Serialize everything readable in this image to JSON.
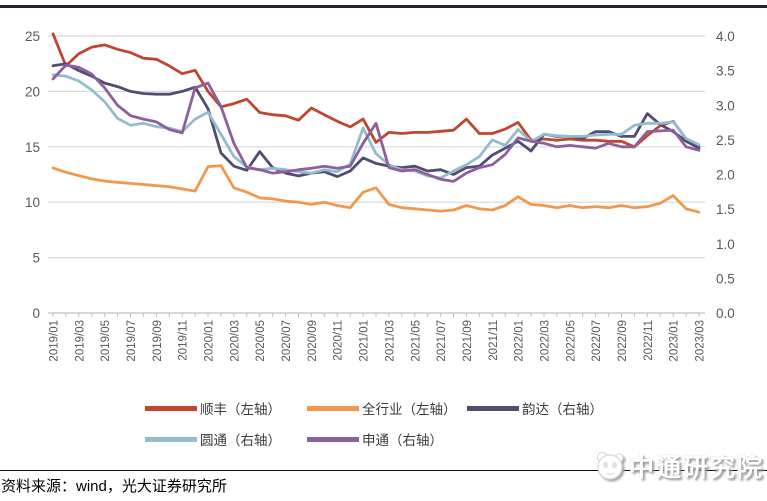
{
  "source_note": "资料来源：wind，光大证券研究所",
  "logo": {
    "text": "中通研究院",
    "icon": "panda-face"
  },
  "chart_data": {
    "type": "line",
    "title": "",
    "xlabel": "",
    "ylabel_left": "",
    "ylabel_right": "",
    "grid": "horizontal",
    "legend_position": "bottom",
    "x": [
      "2019/01",
      "2019/02",
      "2019/03",
      "2019/04",
      "2019/05",
      "2019/06",
      "2019/07",
      "2019/08",
      "2019/09",
      "2019/10",
      "2019/11",
      "2019/12",
      "2020/01",
      "2020/02",
      "2020/03",
      "2020/04",
      "2020/05",
      "2020/06",
      "2020/07",
      "2020/08",
      "2020/09",
      "2020/10",
      "2020/11",
      "2020/12",
      "2021/01",
      "2021/02",
      "2021/03",
      "2021/04",
      "2021/05",
      "2021/06",
      "2021/07",
      "2021/08",
      "2021/09",
      "2021/10",
      "2021/11",
      "2021/12",
      "2022/01",
      "2022/02",
      "2022/03",
      "2022/04",
      "2022/05",
      "2022/06",
      "2022/07",
      "2022/08",
      "2022/09",
      "2022/10",
      "2022/11",
      "2022/12",
      "2023/01",
      "2023/02",
      "2023/03"
    ],
    "x_tick_every": 2,
    "axes": {
      "left": {
        "min": 0,
        "max": 25,
        "ticks": [
          0,
          5,
          10,
          15,
          20,
          25
        ],
        "decimals": 0
      },
      "right": {
        "min": 0,
        "max": 4,
        "ticks": [
          0.0,
          0.5,
          1.0,
          1.5,
          2.0,
          2.5,
          3.0,
          3.5,
          4.0
        ],
        "decimals": 1
      }
    },
    "colors": {
      "grid": "#d9d9d9",
      "axis": "#c0c0c0",
      "tick_text": "#595959"
    },
    "series": [
      {
        "name": "顺丰（左轴）",
        "axis": "left",
        "color": "#c1462f",
        "values": [
          25.2,
          22.3,
          23.4,
          24.0,
          24.2,
          23.8,
          23.5,
          23.0,
          22.9,
          22.3,
          21.6,
          21.9,
          20.0,
          18.6,
          18.9,
          19.3,
          18.1,
          17.9,
          17.8,
          17.4,
          18.5,
          17.9,
          17.3,
          16.8,
          17.5,
          15.4,
          16.3,
          16.2,
          16.3,
          16.3,
          16.4,
          16.5,
          17.5,
          16.2,
          16.2,
          16.6,
          17.2,
          15.6,
          15.7,
          15.6,
          15.7,
          15.6,
          15.6,
          15.5,
          15.5,
          15.0,
          16.0,
          16.9,
          17.3,
          15.7,
          15.1
        ]
      },
      {
        "name": "全行业（左轴）",
        "axis": "left",
        "color": "#f0994e",
        "values": [
          13.1,
          12.7,
          12.4,
          12.1,
          11.9,
          11.8,
          11.7,
          11.6,
          11.5,
          11.4,
          11.2,
          11.0,
          13.2,
          13.3,
          11.3,
          10.9,
          10.4,
          10.3,
          10.1,
          10.0,
          9.8,
          10.0,
          9.7,
          9.5,
          10.9,
          11.3,
          9.8,
          9.5,
          9.4,
          9.3,
          9.2,
          9.3,
          9.7,
          9.4,
          9.3,
          9.7,
          10.5,
          9.8,
          9.7,
          9.5,
          9.7,
          9.5,
          9.6,
          9.5,
          9.7,
          9.5,
          9.6,
          9.9,
          10.6,
          9.4,
          9.1
        ]
      },
      {
        "name": "韵达（右轴）",
        "axis": "right",
        "color": "#504c72",
        "values": [
          3.57,
          3.6,
          3.5,
          3.42,
          3.32,
          3.27,
          3.2,
          3.17,
          3.16,
          3.16,
          3.2,
          3.26,
          2.95,
          2.31,
          2.12,
          2.06,
          2.33,
          2.1,
          2.02,
          1.98,
          2.02,
          2.04,
          1.97,
          2.05,
          2.24,
          2.16,
          2.12,
          2.1,
          2.12,
          2.05,
          2.07,
          2.0,
          2.1,
          2.12,
          2.28,
          2.38,
          2.48,
          2.34,
          2.58,
          2.55,
          2.55,
          2.52,
          2.62,
          2.62,
          2.55,
          2.55,
          2.88,
          2.72,
          2.62,
          2.48,
          2.38
        ]
      },
      {
        "name": "圆通（右轴）",
        "axis": "right",
        "color": "#93bdcd",
        "values": [
          3.44,
          3.42,
          3.35,
          3.22,
          3.05,
          2.81,
          2.71,
          2.74,
          2.69,
          2.67,
          2.62,
          2.8,
          2.9,
          2.58,
          2.26,
          2.11,
          2.07,
          2.09,
          2.07,
          2.04,
          2.02,
          2.07,
          2.04,
          2.15,
          2.67,
          2.3,
          2.14,
          2.07,
          2.05,
          1.98,
          1.95,
          2.05,
          2.14,
          2.26,
          2.5,
          2.42,
          2.65,
          2.48,
          2.58,
          2.56,
          2.55,
          2.55,
          2.57,
          2.58,
          2.58,
          2.71,
          2.74,
          2.74,
          2.76,
          2.52,
          2.43
        ]
      },
      {
        "name": "申通（右轴）",
        "axis": "right",
        "color": "#8d5f9e",
        "values": [
          3.38,
          3.58,
          3.55,
          3.45,
          3.25,
          3.0,
          2.85,
          2.8,
          2.76,
          2.65,
          2.6,
          3.25,
          3.32,
          2.98,
          2.45,
          2.1,
          2.07,
          2.02,
          2.04,
          2.07,
          2.09,
          2.12,
          2.09,
          2.12,
          2.45,
          2.74,
          2.1,
          2.05,
          2.07,
          2.0,
          1.93,
          1.9,
          2.02,
          2.1,
          2.14,
          2.29,
          2.53,
          2.48,
          2.45,
          2.4,
          2.42,
          2.4,
          2.38,
          2.45,
          2.4,
          2.4,
          2.62,
          2.63,
          2.64,
          2.4,
          2.35
        ]
      }
    ]
  }
}
